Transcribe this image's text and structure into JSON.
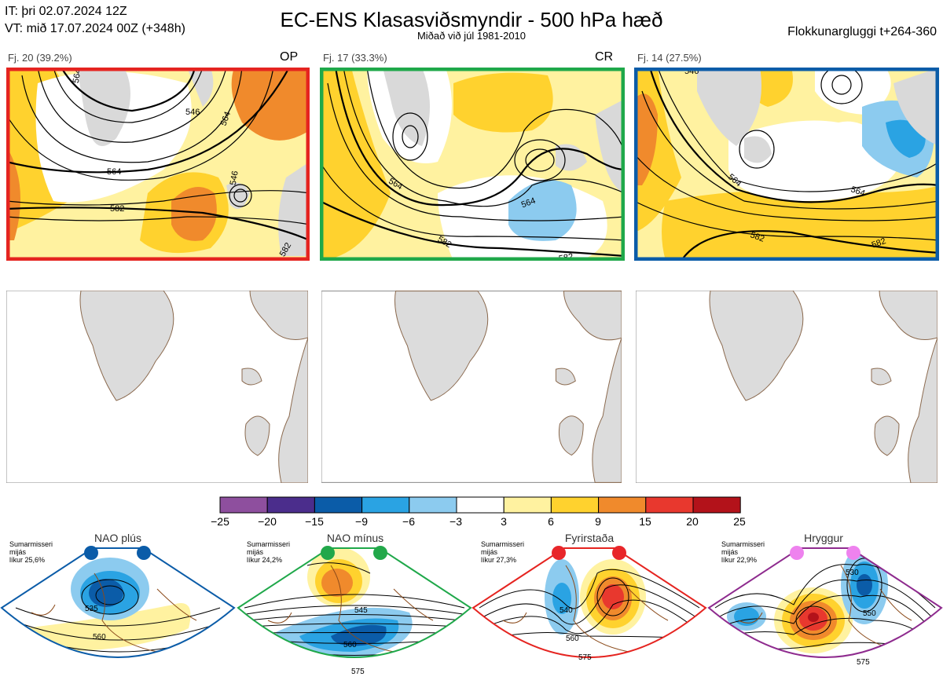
{
  "header": {
    "issue_time": "IT: þri 02.07.2024 12Z",
    "valid_time": "VT: mið 17.07.2024 00Z  (+348h)",
    "title": "EC-ENS Klasasviðsmyndir - 500 hPa hæð",
    "subtitle": "Miðað við júl 1981-2010",
    "window": "Flokkunargluggi t+264-360"
  },
  "clusters": [
    {
      "label": "Fj. 20 (39.2%)",
      "tag": "OP",
      "border_color": "#e52420",
      "contours": [
        "546",
        "564",
        "564",
        "582",
        "582",
        "546",
        "564"
      ]
    },
    {
      "label": "Fj. 17 (33.3%)",
      "tag": "CR",
      "border_color": "#1fa84a",
      "contours": [
        "564",
        "564",
        "582",
        "582"
      ]
    },
    {
      "label": "Fj. 14 (27.5%)",
      "tag": "",
      "border_color": "#0b5ca8",
      "contours": [
        "546",
        "564",
        "564",
        "582",
        "582"
      ]
    }
  ],
  "colorbar": {
    "ticks": [
      "−25",
      "−20",
      "−15",
      "−9",
      "−6",
      "−3",
      "3",
      "6",
      "9",
      "15",
      "20",
      "25"
    ],
    "colors": [
      "#8e4f9e",
      "#4b2d8c",
      "#0b5ca8",
      "#2aa3e3",
      "#8ccbef",
      "#ffffff",
      "#fff2a0",
      "#ffd22e",
      "#f08a2c",
      "#e8382e",
      "#b3121a"
    ]
  },
  "regimes": [
    {
      "name": "NAO plús",
      "season": "Sumarmisseri",
      "mean": "mijás",
      "prob": "líkur 25,6%",
      "color": "#0b5ca8",
      "dot_color": "#0b5ca8",
      "contours": [
        "535",
        "560"
      ]
    },
    {
      "name": "NAO mínus",
      "season": "Sumarmisseri",
      "mean": "mijás",
      "prob": "líkur 24,2%",
      "color": "#1fa84a",
      "dot_color": "#22a84a",
      "contours": [
        "545",
        "560",
        "575"
      ]
    },
    {
      "name": "Fyrirstaða",
      "season": "Sumarmisseri",
      "mean": "mijás",
      "prob": "líkur 27,3%",
      "color": "#e52420",
      "dot_color": "#e8262a",
      "contours": [
        "540",
        "560",
        "575"
      ]
    },
    {
      "name": "Hryggur",
      "season": "Sumarmisseri",
      "mean": "mijás",
      "prob": "líkur 22,9%",
      "color": "#8e2b8e",
      "dot_color": "#ee82ee",
      "contours": [
        "530",
        "550",
        "575"
      ]
    }
  ]
}
